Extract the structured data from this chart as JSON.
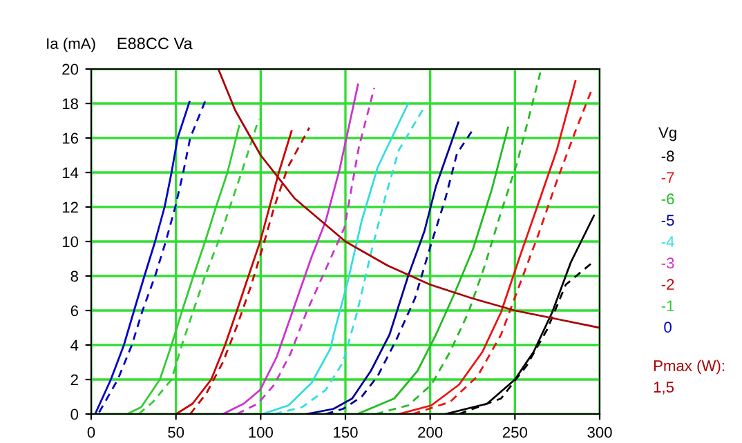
{
  "chart_data": {
    "type": "line",
    "title": "E88CC Va",
    "ylabel": "Ia (mA)",
    "legend_title": "Vg",
    "legend": "right",
    "grid": true,
    "xlim": [
      0,
      300
    ],
    "ylim": [
      0,
      20
    ],
    "xticks": [
      0,
      50,
      100,
      150,
      200,
      250,
      300
    ],
    "yticks": [
      0,
      2,
      4,
      6,
      8,
      10,
      12,
      14,
      16,
      18,
      20
    ],
    "marker": "none",
    "annotations": [
      "1,5"
    ],
    "series": [
      {
        "name": "-8",
        "color": "#000000",
        "line_style": "solid",
        "x": [
          209,
          233.6,
          250,
          261,
          272,
          283,
          296.6
        ],
        "values": [
          0,
          0.6,
          2,
          3.6,
          5.9,
          8.8,
          11.5
        ]
      },
      {
        "color": "#000000",
        "line_style": "dashed",
        "x": [
          217,
          241.8,
          256.9,
          269,
          280,
          294.7
        ],
        "values": [
          0,
          0.9,
          2.8,
          4.9,
          7.5,
          8.7
        ]
      },
      {
        "name": "-7",
        "color": "#ee1111",
        "line_style": "solid",
        "x": [
          181.5,
          200.7,
          217,
          230.8,
          241.8,
          252.8,
          263.8,
          274.7,
          285.7
        ],
        "values": [
          0,
          0.5,
          1.7,
          3.6,
          5.9,
          9.1,
          12.2,
          15.3,
          19.3
        ]
      },
      {
        "color": "#ee1111",
        "line_style": "dashed",
        "x": [
          189.7,
          211.7,
          228,
          241.8,
          252.8,
          263.8,
          274.7,
          285.7,
          295.3
        ],
        "values": [
          0,
          0.7,
          2.2,
          4.6,
          7.5,
          10.4,
          13.5,
          16.4,
          18.8
        ]
      },
      {
        "name": "-6",
        "color": "#22bb22",
        "line_style": "solid",
        "x": [
          157,
          178.8,
          192.5,
          203.4,
          214.4,
          225.4,
          236.3,
          245.9
        ],
        "values": [
          0,
          0.9,
          2.5,
          4.6,
          7,
          9.6,
          13,
          16.6
        ]
      },
      {
        "color": "#22bb22",
        "line_style": "dashed",
        "x": [
          167.8,
          187,
          200.7,
          211.7,
          222.6,
          232.2,
          241.8,
          251.4,
          265
        ],
        "values": [
          0,
          0.5,
          1.7,
          3.6,
          5.9,
          8.6,
          11.7,
          14.6,
          19.8
        ]
      },
      {
        "name": "-5",
        "color": "#000099",
        "line_style": "solid",
        "x": [
          127,
          143,
          154,
          165,
          176,
          187,
          196.6,
          203.4,
          216.6
        ],
        "values": [
          0,
          0.3,
          0.9,
          2.5,
          4.6,
          8,
          10.6,
          13.2,
          16.9
        ]
      },
      {
        "color": "#000099",
        "line_style": "dashed",
        "x": [
          138.4,
          148.6,
          159.6,
          169,
          180,
          191,
          200.7,
          209,
          215.8,
          226
        ],
        "values": [
          0,
          0.3,
          1,
          2.2,
          4.3,
          6.7,
          9.9,
          12.5,
          15.1,
          16.6
        ]
      },
      {
        "name": "-4",
        "color": "#33dddd",
        "line_style": "solid",
        "x": [
          101,
          116.4,
          130,
          141.2,
          143,
          151.4,
          159.6,
          169,
          187
        ],
        "values": [
          0,
          0.5,
          1.8,
          3.8,
          4.6,
          7.7,
          11.2,
          14.3,
          18
        ]
      },
      {
        "color": "#33dddd",
        "line_style": "dashed",
        "x": [
          108,
          124.5,
          138.4,
          148.6,
          156.9,
          165,
          173.3,
          181.5,
          196.6
        ],
        "values": [
          0,
          0.4,
          1.4,
          3,
          5.9,
          9.3,
          12.5,
          15.3,
          17.8
        ]
      },
      {
        "name": "-3",
        "color": "#cc33cc",
        "line_style": "solid",
        "x": [
          77.7,
          90,
          99.7,
          109.4,
          119,
          130,
          138.4,
          146.6,
          157.4
        ],
        "values": [
          0,
          0.6,
          1.4,
          3.3,
          6,
          9.1,
          11.2,
          14.2,
          19.1
        ]
      },
      {
        "color": "#cc33cc",
        "line_style": "dashed",
        "x": [
          86,
          98.3,
          108,
          117.6,
          127,
          138.4,
          149.4,
          158,
          167
        ],
        "values": [
          0,
          0.6,
          1.7,
          3.5,
          5.9,
          8.4,
          10.8,
          15.5,
          18.9
        ]
      },
      {
        "name": "-2",
        "color": "#cc0000",
        "line_style": "solid",
        "x": [
          50.1,
          59.8,
          70.8,
          79,
          86,
          92.8,
          99.7,
          105.2,
          110.7,
          118.2
        ],
        "values": [
          0,
          0.6,
          2,
          4,
          6,
          8,
          10,
          12,
          14,
          16.4
        ]
      },
      {
        "color": "#cc0000",
        "line_style": "dashed",
        "x": [
          58.4,
          68,
          77.7,
          86,
          94.2,
          101,
          108,
          116,
          128.7
        ],
        "values": [
          0,
          1.2,
          3,
          5.1,
          7.4,
          9.6,
          12,
          14.3,
          16.6
        ]
      },
      {
        "name": "-1",
        "color": "#33cc33",
        "line_style": "solid",
        "x": [
          21.2,
          29.5,
          40.5,
          47.4,
          53.7,
          60.3,
          67.2,
          73.6,
          80.4,
          87.3
        ],
        "values": [
          0,
          0.4,
          2,
          4,
          6,
          8,
          10,
          12,
          14,
          16.7
        ]
      },
      {
        "color": "#33cc33",
        "line_style": "dashed",
        "x": [
          28,
          36.4,
          47.4,
          53.5,
          60.3,
          67.2,
          75,
          81.8,
          88.7,
          98.9
        ],
        "values": [
          0,
          0.7,
          2,
          4,
          6,
          8,
          10,
          12,
          14,
          17.1
        ]
      },
      {
        "name": "0",
        "color": "#0000cc",
        "line_style": "solid",
        "x": [
          2.8,
          11.6,
          19.3,
          25.3,
          31.4,
          37.7,
          43.3,
          47.4,
          51,
          58
        ],
        "values": [
          0.1,
          2,
          4,
          6,
          8,
          10,
          12,
          14,
          16,
          18.1
        ]
      },
      {
        "color": "#0000cc",
        "line_style": "dashed",
        "x": [
          4.7,
          15.7,
          24,
          30.3,
          37.7,
          44,
          49.6,
          54.3,
          58.4,
          67.5
        ],
        "values": [
          0.1,
          2,
          4,
          6,
          8,
          10,
          12,
          14,
          16,
          18.2
        ]
      },
      {
        "name": "Pmax (W):",
        "color": "#aa0000",
        "line_style": "solid",
        "x": [
          75,
          85,
          100,
          120,
          150,
          175,
          200,
          225,
          250,
          275,
          300
        ],
        "values": [
          20,
          17.6,
          15,
          12.5,
          10,
          8.6,
          7.5,
          6.7,
          6,
          5.5,
          5
        ]
      }
    ]
  }
}
